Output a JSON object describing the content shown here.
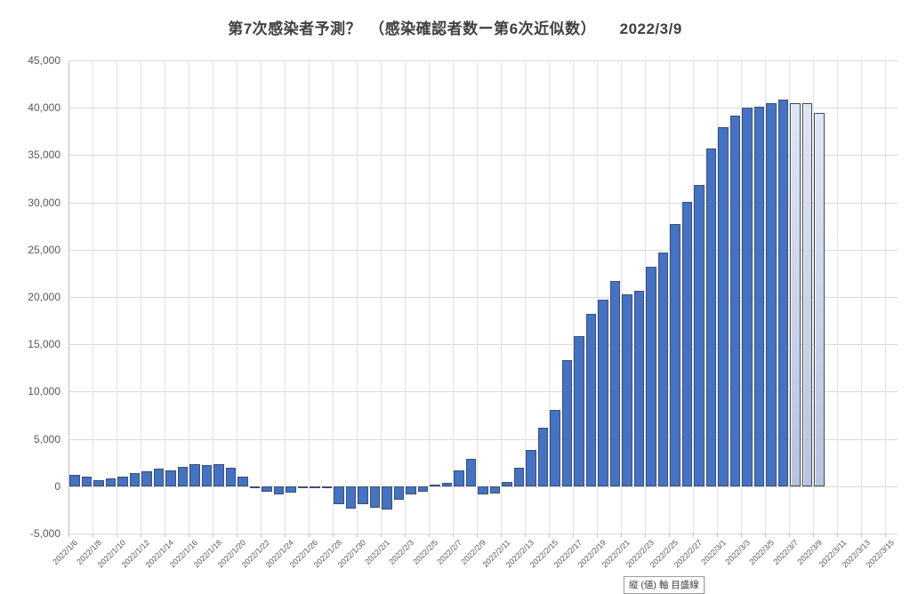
{
  "window": {
    "background": "#ffffff"
  },
  "tooltip": {
    "text": "縦 (値) 軸 目盛線"
  },
  "colors": {
    "title_text": "#404040",
    "axis_text": "#595959",
    "gridline": "#d9d9d9",
    "bar_fill": "#4472c4",
    "bar_border": "#3e4f70",
    "forecast_bar_top": "#dde6f4",
    "forecast_bar_bottom": "#b6c4e2",
    "forecast_bar_border": "#4a4a4a"
  },
  "chart_data": {
    "type": "bar",
    "title": "第7次感染者予測？　（感染確認者数ー第6次近似数）　　2022/3/9",
    "xlabel": "",
    "ylabel": "",
    "ylim": [
      -5000,
      45000
    ],
    "ytick_step": 5000,
    "grid": true,
    "legend_position": "none",
    "ytick_labels": [
      "45,000",
      "40,000",
      "35,000",
      "30,000",
      "25,000",
      "20,000",
      "15,000",
      "10,000",
      "5,000",
      "0",
      "-5,000"
    ],
    "xtick_labels": [
      "2022/1/6",
      "2022/1/8",
      "2022/1/10",
      "2022/1/12",
      "2022/1/14",
      "2022/1/16",
      "2022/1/18",
      "2022/1/20",
      "2022/1/22",
      "2022/1/24",
      "2022/1/26",
      "2022/1/28",
      "2022/1/30",
      "2022/2/1",
      "2022/2/3",
      "2022/2/5",
      "2022/2/7",
      "2022/2/9",
      "2022/2/11",
      "2022/2/13",
      "2022/2/15",
      "2022/2/17",
      "2022/2/19",
      "2022/2/21",
      "2022/2/23",
      "2022/2/25",
      "2022/2/27",
      "2022/3/1",
      "2022/3/3",
      "2022/3/5",
      "2022/3/7",
      "2022/3/9",
      "2022/3/11",
      "2022/3/13",
      "2022/3/15"
    ],
    "x": [
      "2022/1/6",
      "2022/1/7",
      "2022/1/8",
      "2022/1/9",
      "2022/1/10",
      "2022/1/11",
      "2022/1/12",
      "2022/1/13",
      "2022/1/14",
      "2022/1/15",
      "2022/1/16",
      "2022/1/17",
      "2022/1/18",
      "2022/1/19",
      "2022/1/20",
      "2022/1/21",
      "2022/1/22",
      "2022/1/23",
      "2022/1/24",
      "2022/1/25",
      "2022/1/26",
      "2022/1/27",
      "2022/1/28",
      "2022/1/29",
      "2022/1/30",
      "2022/1/31",
      "2022/2/1",
      "2022/2/2",
      "2022/2/3",
      "2022/2/4",
      "2022/2/5",
      "2022/2/6",
      "2022/2/7",
      "2022/2/8",
      "2022/2/9",
      "2022/2/10",
      "2022/2/11",
      "2022/2/12",
      "2022/2/13",
      "2022/2/14",
      "2022/2/15",
      "2022/2/16",
      "2022/2/17",
      "2022/2/18",
      "2022/2/19",
      "2022/2/20",
      "2022/2/21",
      "2022/2/22",
      "2022/2/23",
      "2022/2/24",
      "2022/2/25",
      "2022/2/26",
      "2022/2/27",
      "2022/2/28",
      "2022/3/1",
      "2022/3/2",
      "2022/3/3",
      "2022/3/4",
      "2022/3/5",
      "2022/3/6",
      "2022/3/7",
      "2022/3/8",
      "2022/3/9"
    ],
    "values": [
      1200,
      1050,
      630,
      800,
      1050,
      1350,
      1600,
      1850,
      1700,
      2070,
      2380,
      2220,
      2320,
      1975,
      1000,
      -80,
      -600,
      -880,
      -690,
      -150,
      -250,
      -250,
      -1900,
      -2400,
      -1900,
      -2250,
      -2450,
      -1450,
      -900,
      -550,
      150,
      400,
      1650,
      2900,
      -900,
      -750,
      450,
      1950,
      3850,
      6150,
      8050,
      13300,
      15900,
      18250,
      19750,
      21700,
      20300,
      20650,
      23200,
      24700,
      27750,
      30100,
      31800,
      35700,
      38000,
      39200,
      40050,
      40100,
      40500,
      40900,
      40450,
      40500,
      39500
    ],
    "forecast_from_index": 60,
    "x_axis_total_slots": 69,
    "xtick_every_n_slots": 2
  }
}
